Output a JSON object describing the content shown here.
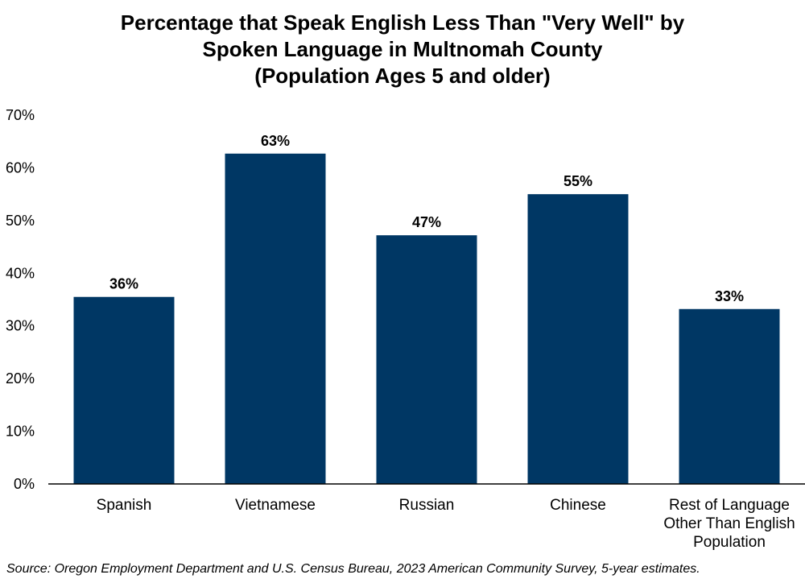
{
  "chart_data": {
    "type": "bar",
    "title_lines": [
      "Percentage that Speak English Less Than \"Very Well\" by",
      "Spoken Language in Multnomah County",
      "(Population Ages 5 and older)"
    ],
    "categories": [
      [
        "Spanish"
      ],
      [
        "Vietnamese"
      ],
      [
        "Russian"
      ],
      [
        "Chinese"
      ],
      [
        "Rest of Language",
        "Other Than English",
        "Population"
      ]
    ],
    "values": [
      35.5,
      62.7,
      47.2,
      55.0,
      33.2
    ],
    "data_labels": [
      "36%",
      "63%",
      "47%",
      "55%",
      "33%"
    ],
    "yticks": [
      "0%",
      "10%",
      "20%",
      "30%",
      "40%",
      "50%",
      "60%",
      "70%"
    ],
    "ylim": [
      0,
      70
    ],
    "xlabel": "",
    "ylabel": "",
    "grid": false,
    "bar_color": "#003764"
  },
  "source": "Source: Oregon Employment Department and U.S. Census Bureau, 2023 American Community Survey, 5-year estimates."
}
